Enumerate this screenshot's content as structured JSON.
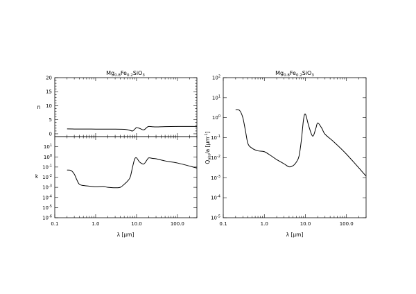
{
  "chart_data": [
    {
      "type": "line",
      "panel": "top-left",
      "title": {
        "base": "Mg",
        "s1": "0.8",
        "mid": "Fe",
        "s2": "0.2",
        "end": "SiO",
        "s3": "3"
      },
      "ylabel": "n",
      "xscale": "log",
      "xlim": [
        0.1,
        300
      ],
      "ylim": [
        -1,
        20
      ],
      "yticks": [
        "0",
        "5",
        "10",
        "15",
        "20"
      ],
      "grid": false,
      "series": [
        {
          "x": [
            0.2,
            0.3,
            0.5,
            1,
            2,
            3,
            4,
            5,
            6,
            7,
            8,
            9,
            10,
            12,
            15,
            18,
            20,
            25,
            30,
            50,
            100,
            300
          ],
          "values": [
            1.75,
            1.7,
            1.68,
            1.67,
            1.66,
            1.65,
            1.62,
            1.58,
            1.45,
            1.2,
            1.0,
            1.6,
            2.2,
            1.9,
            1.4,
            2.3,
            2.6,
            2.5,
            2.45,
            2.55,
            2.6,
            2.6
          ]
        }
      ]
    },
    {
      "type": "line",
      "panel": "bottom-left",
      "ylabel": "k",
      "xlabel": {
        "lambda": "λ",
        "unit": "[μm]"
      },
      "xscale": "log",
      "yscale": "log",
      "xlim": [
        0.1,
        300
      ],
      "ylim": [
        1e-06,
        100
      ],
      "xticks": [
        "0.1",
        "1.0",
        "10.0",
        "100.0"
      ],
      "yticks": [
        {
          "base": "10",
          "exp": "-6"
        },
        {
          "base": "10",
          "exp": "-5"
        },
        {
          "base": "10",
          "exp": "-4"
        },
        {
          "base": "10",
          "exp": "-3"
        },
        {
          "base": "10",
          "exp": "-2"
        },
        {
          "base": "10",
          "exp": "-1"
        },
        {
          "base": "10",
          "exp": "0"
        },
        {
          "base": "10",
          "exp": "1"
        }
      ],
      "grid": false,
      "series": [
        {
          "x": [
            0.2,
            0.25,
            0.3,
            0.35,
            0.4,
            0.5,
            0.7,
            1,
            1.5,
            2,
            3,
            4,
            5,
            6,
            7,
            8,
            9,
            10,
            12,
            15,
            18,
            20,
            25,
            30,
            50,
            100,
            300
          ],
          "values": [
            0.05,
            0.045,
            0.02,
            0.005,
            0.002,
            0.0015,
            0.0013,
            0.0011,
            0.0012,
            0.001,
            0.0009,
            0.001,
            0.002,
            0.004,
            0.01,
            0.1,
            0.6,
            0.8,
            0.3,
            0.2,
            0.5,
            0.8,
            0.7,
            0.65,
            0.4,
            0.25,
            0.08
          ]
        }
      ]
    },
    {
      "type": "line",
      "panel": "right",
      "title": {
        "base": "Mg",
        "s1": "0.8",
        "mid": "Fe",
        "s2": "0.2",
        "end": "SiO",
        "s3": "3"
      },
      "ylabel": {
        "base": "Q",
        "sub": "abs",
        "rest": "/a [μm",
        "sup": "-1",
        "close": "]"
      },
      "xlabel": {
        "lambda": "λ",
        "unit": "[μm]"
      },
      "xscale": "log",
      "yscale": "log",
      "xlim": [
        0.1,
        300
      ],
      "ylim": [
        1e-05,
        100
      ],
      "xticks": [
        "0.1",
        "1.0",
        "10.0",
        "100.0"
      ],
      "yticks": [
        {
          "base": "10",
          "exp": "-5"
        },
        {
          "base": "10",
          "exp": "-4"
        },
        {
          "base": "10",
          "exp": "-3"
        },
        {
          "base": "10",
          "exp": "-2"
        },
        {
          "base": "10",
          "exp": "-1"
        },
        {
          "base": "10",
          "exp": "0"
        },
        {
          "base": "10",
          "exp": "1"
        },
        {
          "base": "10",
          "exp": "2"
        }
      ],
      "grid": false,
      "series": [
        {
          "x": [
            0.2,
            0.25,
            0.3,
            0.35,
            0.4,
            0.5,
            0.7,
            1,
            1.5,
            2,
            3,
            4,
            5,
            6,
            7,
            8,
            9,
            10,
            12,
            15,
            18,
            20,
            25,
            30,
            50,
            100,
            300
          ],
          "values": [
            2.5,
            2.3,
            1.0,
            0.2,
            0.05,
            0.03,
            0.022,
            0.02,
            0.012,
            0.008,
            0.005,
            0.0035,
            0.004,
            0.006,
            0.012,
            0.08,
            0.8,
            1.5,
            0.4,
            0.12,
            0.3,
            0.55,
            0.3,
            0.15,
            0.06,
            0.015,
            0.0012
          ]
        }
      ]
    }
  ]
}
